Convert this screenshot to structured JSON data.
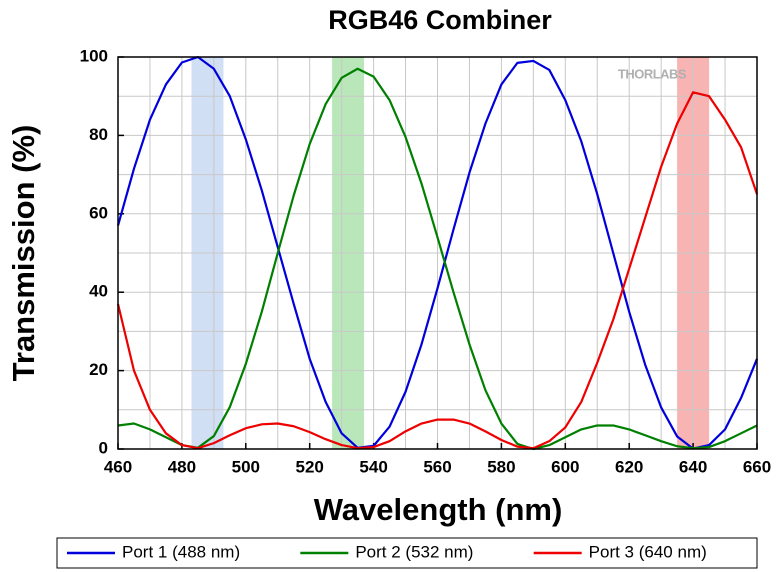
{
  "chart_data": {
    "type": "line",
    "title": "RGB46 Combiner",
    "x_label": "Wavelength (nm)",
    "y_label": "Transmission (%)",
    "watermark": "THORLABS",
    "x": [
      460,
      465,
      470,
      475,
      480,
      485,
      490,
      495,
      500,
      505,
      510,
      515,
      520,
      525,
      530,
      535,
      540,
      545,
      550,
      555,
      560,
      565,
      570,
      575,
      580,
      585,
      590,
      595,
      600,
      605,
      610,
      615,
      620,
      625,
      630,
      635,
      640,
      645,
      650,
      655,
      660
    ],
    "series": [
      {
        "name": "Port 1 (488 nm)",
        "color": "#0000dd",
        "values": [
          57,
          71.5,
          84,
          93,
          98.6,
          100,
          97,
          90,
          79,
          66,
          51.5,
          37,
          23,
          12,
          4,
          0.3,
          0.8,
          5.7,
          14.6,
          26.7,
          41,
          56,
          70.5,
          83,
          93,
          98.5,
          99,
          96.7,
          89,
          78.5,
          65,
          50,
          35,
          21.5,
          10.6,
          3.2,
          0.1,
          1,
          5,
          13,
          23
        ]
      },
      {
        "name": "Port 2 (532 nm)",
        "color": "#008000",
        "values": [
          6,
          6.5,
          5,
          3,
          1,
          0.3,
          3.3,
          10.7,
          21.7,
          35,
          50,
          64.7,
          77.8,
          88,
          94.7,
          97,
          95,
          89,
          79.6,
          67.7,
          54,
          40,
          26.7,
          15,
          6.5,
          1.3,
          0,
          1,
          3,
          5,
          6,
          6,
          5,
          3.5,
          2,
          0.7,
          0.2,
          0.5,
          2,
          4,
          6
        ]
      },
      {
        "name": "Port 3 (640 nm)",
        "color": "#ee0000",
        "values": [
          37,
          20,
          10,
          4,
          1,
          0.2,
          1.5,
          3.5,
          5.3,
          6.3,
          6.5,
          5.8,
          4.3,
          2.5,
          1,
          0.2,
          0.5,
          2,
          4.5,
          6.5,
          7.5,
          7.5,
          6.5,
          4.5,
          2.3,
          0.6,
          0.2,
          2,
          5.5,
          12,
          22,
          33,
          46,
          59,
          72,
          83,
          91,
          90,
          84,
          77,
          65
        ]
      }
    ],
    "highlight_bands": [
      {
        "range": [
          483,
          493
        ],
        "color": "#c9d9f2"
      },
      {
        "range": [
          527,
          537
        ],
        "color": "#aee3ae"
      },
      {
        "range": [
          635,
          645
        ],
        "color": "#f7a6a6"
      }
    ],
    "xlim": [
      460,
      660
    ],
    "xticks": [
      460,
      480,
      500,
      520,
      540,
      560,
      580,
      600,
      620,
      640,
      660
    ],
    "minor_xticks": [
      470,
      490,
      510,
      530,
      550,
      570,
      590,
      610,
      630,
      650
    ],
    "ylim": [
      0,
      100
    ],
    "yticks": [
      0,
      20,
      40,
      60,
      80,
      100
    ],
    "minor_yticks": [
      10,
      30,
      50,
      70,
      90
    ],
    "grid": true,
    "legend": "bottom"
  }
}
